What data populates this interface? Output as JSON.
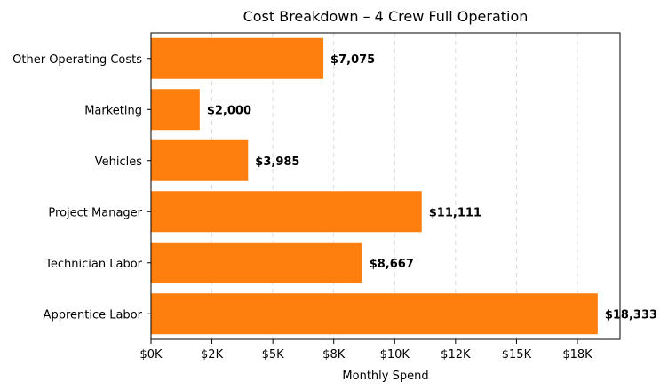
{
  "chart_data": {
    "type": "bar",
    "orientation": "horizontal",
    "title": "Cost Breakdown – 4 Crew Full Operation",
    "xlabel": "Monthly Spend",
    "ylabel": "",
    "categories": [
      "Apprentice Labor",
      "Technician Labor",
      "Project Manager",
      "Vehicles",
      "Marketing",
      "Other Operating Costs"
    ],
    "values": [
      18333,
      8667,
      11111,
      3985,
      2000,
      7075
    ],
    "data_labels": [
      "$18,333",
      "$8,667",
      "$11,111",
      "$3,985",
      "$2,000",
      "$7,075"
    ],
    "xlim": [
      0,
      19250
    ],
    "xticks": [
      0,
      2500,
      5000,
      7500,
      10000,
      12500,
      15000,
      17500
    ],
    "xtick_labels": [
      "$0K",
      "$2K",
      "$5K",
      "$8K",
      "$10K",
      "$12K",
      "$15K",
      "$18K"
    ],
    "grid": "vertical dashed",
    "bar_color": "#ff7f0e"
  }
}
